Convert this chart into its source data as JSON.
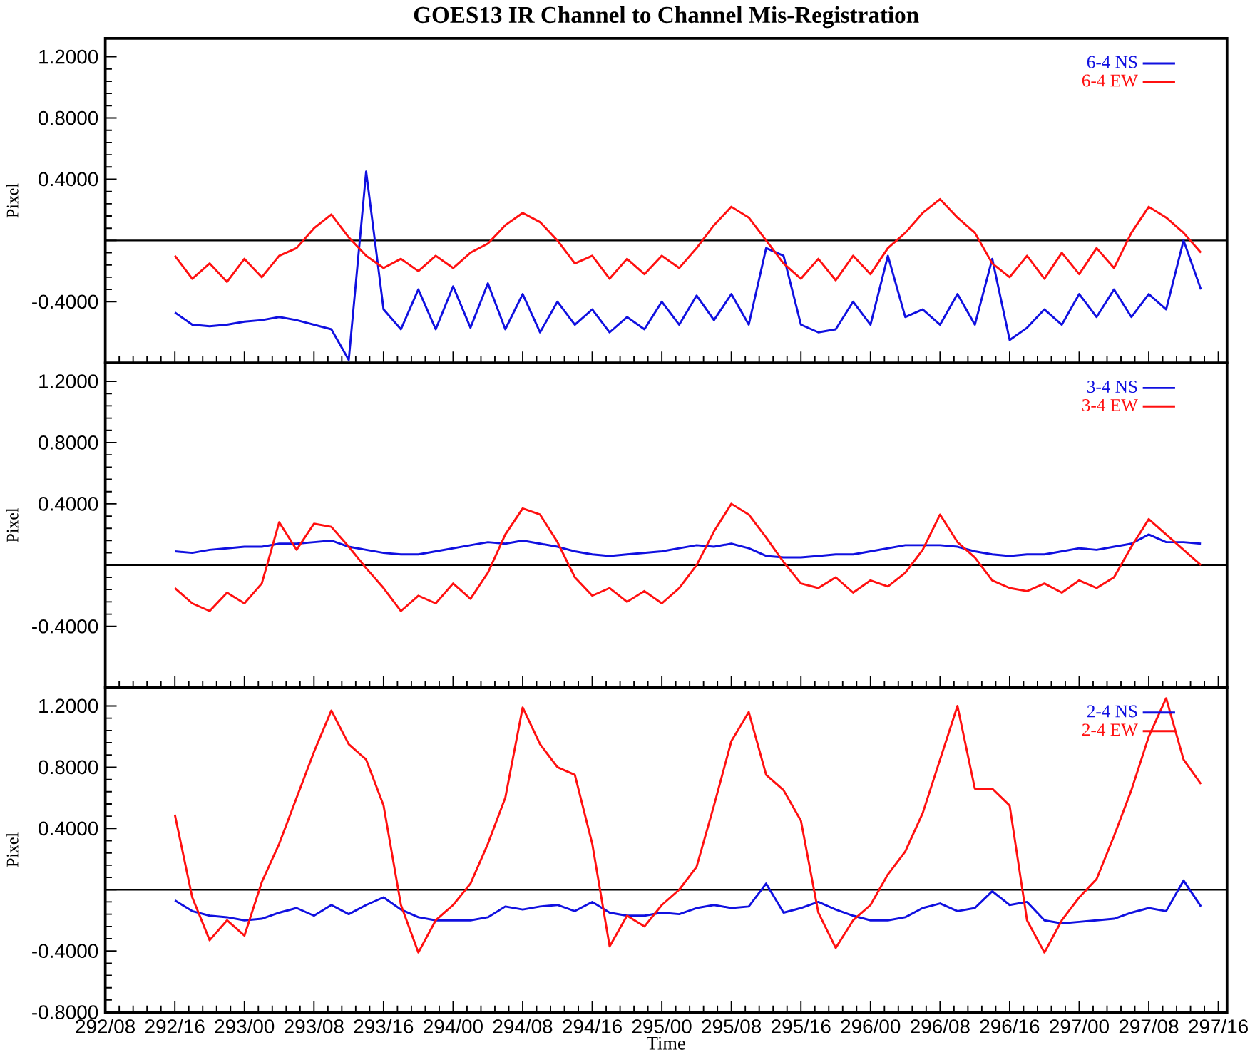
{
  "chart_data": [
    {
      "type": "line",
      "title": "GOES13 IR Channel to Channel Mis-Registration",
      "ylabel": "Pixel",
      "legend": "top right",
      "tick_labels": "y",
      "categories": [
        null,
        null,
        null,
        null,
        null,
        null,
        null,
        null,
        null,
        null,
        null,
        null,
        null,
        null,
        null,
        null,
        null,
        null,
        null,
        null,
        null,
        null,
        null,
        null,
        null,
        null,
        null,
        null,
        null,
        null,
        null,
        null,
        null,
        null,
        null,
        null,
        null,
        null,
        null,
        null,
        null,
        null,
        null,
        null,
        null,
        null,
        null,
        null,
        null,
        null,
        null,
        null,
        null,
        null,
        null,
        null,
        null,
        null,
        null,
        null,
        null,
        null,
        null,
        null,
        null
      ],
      "ylim": [
        -0.8,
        1.32
      ],
      "yticks": [
        {
          "value": -0.4,
          "label": "-0.4000"
        },
        {
          "value": 0,
          "label": null
        },
        {
          "value": 0.4,
          "label": "0.4000"
        },
        {
          "value": 0.8,
          "label": "0.8000"
        },
        {
          "value": 1.2,
          "label": "1.2000"
        }
      ],
      "ref_lines": [
        {
          "axis": "y",
          "value": 0,
          "color": "#000000"
        }
      ],
      "series": [
        {
          "name": "6-4 NS",
          "color": "#1010e0",
          "values": [
            null,
            null,
            null,
            null,
            -0.47,
            -0.55,
            -0.56,
            -0.55,
            -0.53,
            -0.52,
            -0.5,
            -0.52,
            -0.55,
            -0.58,
            -0.78,
            0.45,
            -0.45,
            -0.58,
            -0.32,
            -0.58,
            -0.3,
            -0.57,
            -0.28,
            -0.58,
            -0.35,
            -0.6,
            -0.4,
            -0.55,
            -0.45,
            -0.6,
            -0.5,
            -0.58,
            -0.4,
            -0.55,
            -0.36,
            -0.52,
            -0.35,
            -0.55,
            -0.05,
            -0.1,
            -0.55,
            -0.6,
            -0.58,
            -0.4,
            -0.55,
            -0.1,
            -0.5,
            -0.45,
            -0.55,
            -0.35,
            -0.55,
            -0.12,
            -0.65,
            -0.57,
            -0.45,
            -0.55,
            -0.35,
            -0.5,
            -0.32,
            -0.5,
            -0.35,
            -0.45,
            0.0,
            -0.32,
            null
          ]
        },
        {
          "name": "6-4 EW",
          "color": "#ff1010",
          "values": [
            null,
            null,
            null,
            null,
            -0.1,
            -0.25,
            -0.15,
            -0.27,
            -0.12,
            -0.24,
            -0.1,
            -0.05,
            0.08,
            0.17,
            0.02,
            -0.1,
            -0.18,
            -0.12,
            -0.2,
            -0.1,
            -0.18,
            -0.08,
            -0.02,
            0.1,
            0.18,
            0.12,
            0.0,
            -0.15,
            -0.1,
            -0.25,
            -0.12,
            -0.22,
            -0.1,
            -0.18,
            -0.05,
            0.1,
            0.22,
            0.15,
            0.0,
            -0.15,
            -0.25,
            -0.12,
            -0.26,
            -0.1,
            -0.22,
            -0.05,
            0.05,
            0.18,
            0.27,
            0.15,
            0.05,
            -0.15,
            -0.24,
            -0.1,
            -0.25,
            -0.08,
            -0.22,
            -0.05,
            -0.18,
            0.05,
            0.22,
            0.15,
            0.05,
            -0.08,
            null
          ]
        }
      ]
    },
    {
      "type": "line",
      "ylabel": "Pixel",
      "legend": "top right",
      "tick_labels": "y",
      "categories": [
        null,
        null,
        null,
        null,
        null,
        null,
        null,
        null,
        null,
        null,
        null,
        null,
        null,
        null,
        null,
        null,
        null,
        null,
        null,
        null,
        null,
        null,
        null,
        null,
        null,
        null,
        null,
        null,
        null,
        null,
        null,
        null,
        null,
        null,
        null,
        null,
        null,
        null,
        null,
        null,
        null,
        null,
        null,
        null,
        null,
        null,
        null,
        null,
        null,
        null,
        null,
        null,
        null,
        null,
        null,
        null,
        null,
        null,
        null,
        null,
        null,
        null,
        null,
        null,
        null
      ],
      "ylim": [
        -0.8,
        1.32
      ],
      "yticks": [
        {
          "value": -0.4,
          "label": "-0.4000"
        },
        {
          "value": 0,
          "label": null
        },
        {
          "value": 0.4,
          "label": "0.4000"
        },
        {
          "value": 0.8,
          "label": "0.8000"
        },
        {
          "value": 1.2,
          "label": "1.2000"
        }
      ],
      "ref_lines": [
        {
          "axis": "y",
          "value": 0,
          "color": "#000000"
        }
      ],
      "series": [
        {
          "name": "3-4 NS",
          "color": "#1010e0",
          "values": [
            null,
            null,
            null,
            null,
            0.09,
            0.08,
            0.1,
            0.11,
            0.12,
            0.12,
            0.14,
            0.14,
            0.15,
            0.16,
            0.12,
            0.1,
            0.08,
            0.07,
            0.07,
            0.09,
            0.11,
            0.13,
            0.15,
            0.14,
            0.16,
            0.14,
            0.12,
            0.09,
            0.07,
            0.06,
            0.07,
            0.08,
            0.09,
            0.11,
            0.13,
            0.12,
            0.14,
            0.11,
            0.06,
            0.05,
            0.05,
            0.06,
            0.07,
            0.07,
            0.09,
            0.11,
            0.13,
            0.13,
            0.13,
            0.12,
            0.09,
            0.07,
            0.06,
            0.07,
            0.07,
            0.09,
            0.11,
            0.1,
            0.12,
            0.14,
            0.2,
            0.15,
            0.15,
            0.14,
            null
          ]
        },
        {
          "name": "3-4 EW",
          "color": "#ff1010",
          "values": [
            null,
            null,
            null,
            null,
            -0.15,
            -0.25,
            -0.3,
            -0.18,
            -0.25,
            -0.12,
            0.28,
            0.1,
            0.27,
            0.25,
            0.12,
            -0.02,
            -0.15,
            -0.3,
            -0.2,
            -0.25,
            -0.12,
            -0.22,
            -0.05,
            0.2,
            0.37,
            0.33,
            0.15,
            -0.08,
            -0.2,
            -0.15,
            -0.24,
            -0.17,
            -0.25,
            -0.15,
            0.0,
            0.22,
            0.4,
            0.33,
            0.18,
            0.02,
            -0.12,
            -0.15,
            -0.08,
            -0.18,
            -0.1,
            -0.14,
            -0.05,
            0.1,
            0.33,
            0.15,
            0.05,
            -0.1,
            -0.15,
            -0.17,
            -0.12,
            -0.18,
            -0.1,
            -0.15,
            -0.08,
            0.12,
            0.3,
            0.2,
            0.1,
            0.0,
            null
          ]
        }
      ]
    },
    {
      "type": "line",
      "xlabel": "Time",
      "ylabel": "Pixel",
      "legend": "top right",
      "categories": [
        "292/08",
        null,
        null,
        null,
        "292/16",
        null,
        null,
        null,
        "293/00",
        null,
        null,
        null,
        "293/08",
        null,
        null,
        null,
        "293/16",
        null,
        null,
        null,
        "294/00",
        null,
        null,
        null,
        "294/08",
        null,
        null,
        null,
        "294/16",
        null,
        null,
        null,
        "295/00",
        null,
        null,
        null,
        "295/08",
        null,
        null,
        null,
        "295/16",
        null,
        null,
        null,
        "296/00",
        null,
        null,
        null,
        "296/08",
        null,
        null,
        null,
        "296/16",
        null,
        null,
        null,
        "297/00",
        null,
        null,
        null,
        "297/08",
        null,
        null,
        null,
        "297/16"
      ],
      "ylim": [
        -0.8,
        1.32
      ],
      "yticks": [
        {
          "value": -0.8,
          "label": "-0.8000"
        },
        {
          "value": -0.4,
          "label": "-0.4000"
        },
        {
          "value": 0,
          "label": null
        },
        {
          "value": 0.4,
          "label": "0.4000"
        },
        {
          "value": 0.8,
          "label": "0.8000"
        },
        {
          "value": 1.2,
          "label": "1.2000"
        }
      ],
      "ref_lines": [
        {
          "axis": "y",
          "value": 0,
          "color": "#000000"
        }
      ],
      "series": [
        {
          "name": "2-4 NS",
          "color": "#1010e0",
          "values": [
            null,
            null,
            null,
            null,
            -0.07,
            -0.14,
            -0.17,
            -0.18,
            -0.2,
            -0.19,
            -0.15,
            -0.12,
            -0.17,
            -0.1,
            -0.16,
            -0.1,
            -0.05,
            -0.13,
            -0.18,
            -0.2,
            -0.2,
            -0.2,
            -0.18,
            -0.11,
            -0.13,
            -0.11,
            -0.1,
            -0.14,
            -0.08,
            -0.15,
            -0.17,
            -0.17,
            -0.15,
            -0.16,
            -0.12,
            -0.1,
            -0.12,
            -0.11,
            0.04,
            -0.15,
            -0.12,
            -0.08,
            -0.13,
            -0.17,
            -0.2,
            -0.2,
            -0.18,
            -0.12,
            -0.09,
            -0.14,
            -0.12,
            -0.01,
            -0.1,
            -0.08,
            -0.2,
            -0.22,
            -0.21,
            -0.2,
            -0.19,
            -0.15,
            -0.12,
            -0.14,
            0.06,
            -0.11,
            null
          ]
        },
        {
          "name": "2-4 EW",
          "color": "#ff1010",
          "values": [
            null,
            null,
            null,
            null,
            0.49,
            -0.05,
            -0.33,
            -0.2,
            -0.3,
            0.05,
            0.3,
            0.6,
            0.9,
            1.17,
            0.95,
            0.85,
            0.55,
            -0.1,
            -0.41,
            -0.2,
            -0.1,
            0.04,
            0.3,
            0.6,
            1.19,
            0.95,
            0.8,
            0.75,
            0.3,
            -0.37,
            -0.17,
            -0.24,
            -0.1,
            0.0,
            0.15,
            0.55,
            0.97,
            1.16,
            0.75,
            0.65,
            0.45,
            -0.15,
            -0.38,
            -0.2,
            -0.1,
            0.1,
            0.25,
            0.5,
            0.85,
            1.2,
            0.66,
            0.66,
            0.55,
            -0.2,
            -0.41,
            -0.2,
            -0.05,
            0.07,
            0.35,
            0.65,
            1.0,
            1.25,
            0.85,
            0.69,
            null
          ]
        }
      ]
    }
  ]
}
